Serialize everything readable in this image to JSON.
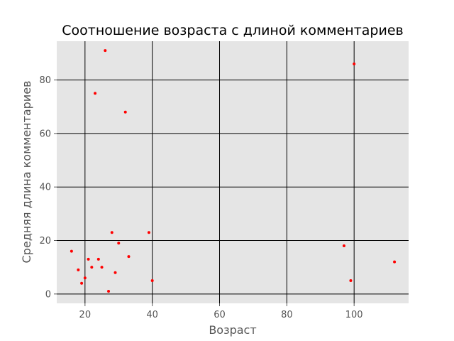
{
  "chart_data": {
    "type": "scatter",
    "title": "Соотношение возраста с длиной комментариев",
    "xlabel": "Возраст",
    "ylabel": "Средняя длина комментариев",
    "xlim": [
      11.6,
      116.2
    ],
    "ylim": [
      -3.5,
      94.5
    ],
    "xticks": [
      20,
      40,
      60,
      80,
      100
    ],
    "yticks": [
      0,
      20,
      40,
      60,
      80
    ],
    "grid": true,
    "background_color": "#e5e5e5",
    "grid_color": "#000000",
    "marker_color": "#ff0000",
    "points": [
      {
        "x": 16,
        "y": 16
      },
      {
        "x": 18,
        "y": 9
      },
      {
        "x": 19,
        "y": 4
      },
      {
        "x": 20,
        "y": 6
      },
      {
        "x": 21,
        "y": 13
      },
      {
        "x": 22,
        "y": 10
      },
      {
        "x": 23,
        "y": 75
      },
      {
        "x": 24,
        "y": 13
      },
      {
        "x": 25,
        "y": 10
      },
      {
        "x": 26,
        "y": 91
      },
      {
        "x": 27,
        "y": 1
      },
      {
        "x": 28,
        "y": 23
      },
      {
        "x": 29,
        "y": 8
      },
      {
        "x": 30,
        "y": 19
      },
      {
        "x": 32,
        "y": 68
      },
      {
        "x": 33,
        "y": 14
      },
      {
        "x": 39,
        "y": 23
      },
      {
        "x": 40,
        "y": 5
      },
      {
        "x": 97,
        "y": 18
      },
      {
        "x": 99,
        "y": 5
      },
      {
        "x": 100,
        "y": 86
      },
      {
        "x": 112,
        "y": 12
      }
    ]
  }
}
